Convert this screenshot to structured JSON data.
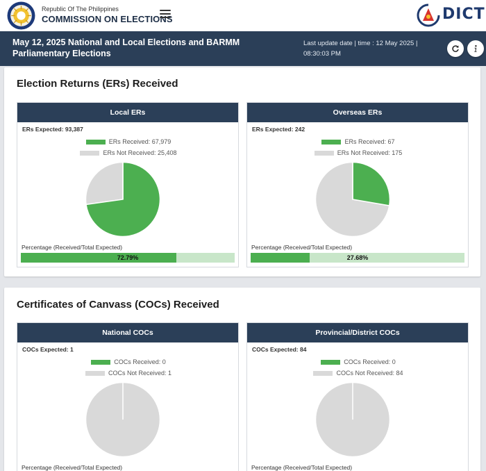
{
  "header": {
    "org_small": "Republic Of The Philippines",
    "org_big": "COMMISSION ON ELECTIONS",
    "dict_logo_text": "DICT"
  },
  "banner": {
    "title": "May 12, 2025 National and Local Elections and BARMM Parliamentary Elections",
    "update_line1": "Last update date | time : 12 May 2025 |",
    "update_line2": "08:30:03 PM",
    "refresh_icon": "refresh-icon",
    "info_icon": "info-icon"
  },
  "colors": {
    "received": "#4caf50",
    "not_received": "#d9d9d9",
    "bar_track": "#c8e6c9",
    "header_navy": "#2b3f58"
  },
  "ers": {
    "title": "Election Returns (ERs) Received",
    "local": {
      "header": "Local ERs",
      "expected": "ERs Expected: 93,387",
      "received_label": "ERs Received: 67,979",
      "not_received_label": "ERs Not Received: 25,408",
      "received": 67979,
      "not_received": 25408,
      "pct_caption": "Percentage (Received/Total Expected)",
      "pct_text": "72.79%",
      "pct": 72.79
    },
    "overseas": {
      "header": "Overseas ERs",
      "expected": "ERs Expected: 242",
      "received_label": "ERs Received: 67",
      "not_received_label": "ERs Not Received: 175",
      "received": 67,
      "not_received": 175,
      "pct_caption": "Percentage (Received/Total Expected)",
      "pct_text": "27.68%",
      "pct": 27.68
    }
  },
  "cocs": {
    "title": "Certificates of Canvass (COCs) Received",
    "national": {
      "header": "National COCs",
      "expected": "COCs Expected: 1",
      "received_label": "COCs Received: 0",
      "not_received_label": "COCs Not Received: 1",
      "received": 0,
      "not_received": 1,
      "pct_caption": "Percentage (Received/Total Expected)"
    },
    "provincial": {
      "header": "Provincial/District COCs",
      "expected": "COCs Expected: 84",
      "received_label": "COCs Received: 0",
      "not_received_label": "COCs Not Received: 84",
      "received": 0,
      "not_received": 84,
      "pct_caption": "Percentage (Received/Total Expected)"
    }
  }
}
